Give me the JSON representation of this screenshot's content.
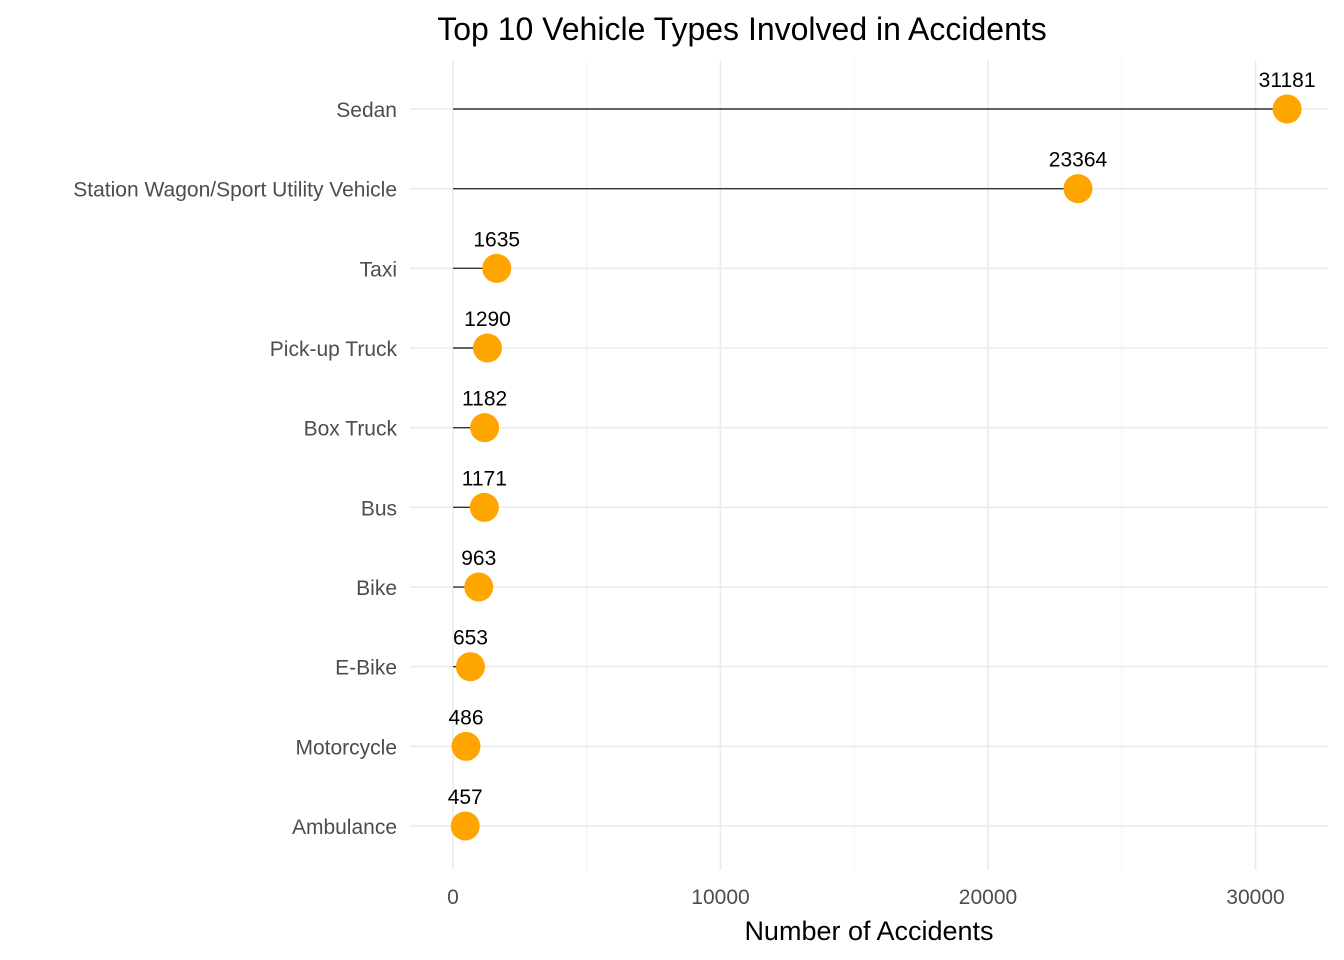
{
  "chart_data": {
    "type": "lollipop",
    "title": "Top 10 Vehicle Types Involved in Accidents",
    "xlabel": "Number of Accidents",
    "ylabel": "",
    "xlim": [
      0,
      32000
    ],
    "x_ticks": [
      0,
      10000,
      20000,
      30000
    ],
    "x_tick_labels": [
      "0",
      "10000",
      "20000",
      "30000"
    ],
    "grid": true,
    "point_color": "#FFA500",
    "stem_color": "#333333",
    "categories": [
      "Sedan",
      "Station Wagon/Sport Utility Vehicle",
      "Taxi",
      "Pick-up Truck",
      "Box Truck",
      "Bus",
      "Bike",
      "E-Bike",
      "Motorcycle",
      "Ambulance"
    ],
    "values": [
      31181,
      23364,
      1635,
      1290,
      1182,
      1171,
      963,
      653,
      486,
      457
    ],
    "value_labels": [
      "31181",
      "23364",
      "1635",
      "1290",
      "1182",
      "1171",
      "963",
      "653",
      "486",
      "457"
    ]
  }
}
